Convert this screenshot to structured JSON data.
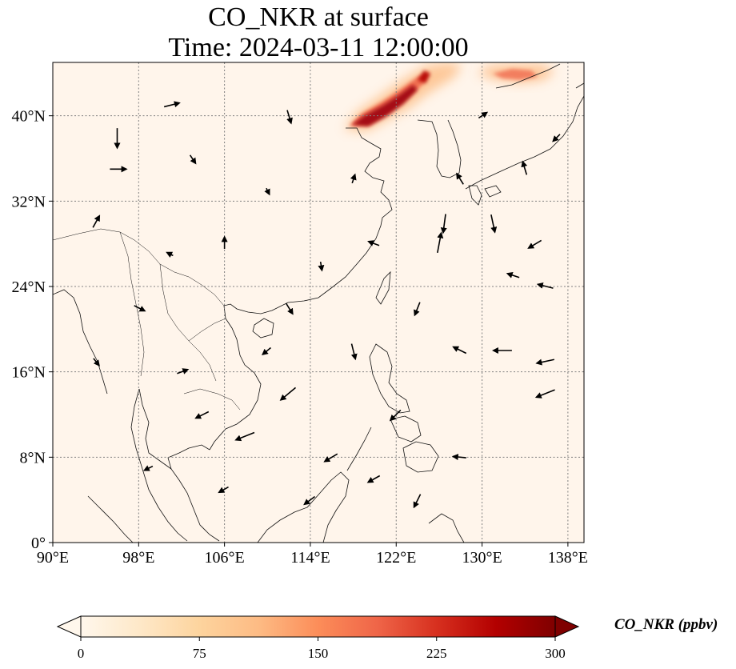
{
  "figure": {
    "title_line1": "CO_NKR at surface",
    "title_line2": "Time: 2024-03-11 12:00:00"
  },
  "map": {
    "extent": {
      "lon_min": 90,
      "lon_max": 139.5,
      "lat_min": 0,
      "lat_max": 45
    },
    "lon_ticks": [
      {
        "value": 90,
        "label": "90°E"
      },
      {
        "value": 98,
        "label": "98°E"
      },
      {
        "value": 106,
        "label": "106°E"
      },
      {
        "value": 114,
        "label": "114°E"
      },
      {
        "value": 122,
        "label": "122°E"
      },
      {
        "value": 130,
        "label": "130°E"
      },
      {
        "value": 138,
        "label": "138°E"
      }
    ],
    "lat_ticks": [
      {
        "value": 0,
        "label": "0°"
      },
      {
        "value": 8,
        "label": "8°N"
      },
      {
        "value": 16,
        "label": "16°N"
      },
      {
        "value": 24,
        "label": "24°N"
      },
      {
        "value": 32,
        "label": "32°N"
      },
      {
        "value": 40,
        "label": "40°N"
      }
    ],
    "gridlines": "dotted",
    "background_color": "#fff5eb",
    "colormap": "OrRd",
    "plumes": [
      {
        "name": "plume-bohai",
        "lon": 121.5,
        "lat": 41.0,
        "intensity": 1.0
      },
      {
        "name": "plume-northeast-china",
        "lon": 125.0,
        "lat": 43.5,
        "intensity": 0.55
      },
      {
        "name": "plume-north-east",
        "lon": 134.0,
        "lat": 44.0,
        "intensity": 0.35
      }
    ]
  },
  "colorbar": {
    "label": "CO_NKR (ppbv)",
    "min": 0,
    "max": 300,
    "ticks": [
      "0",
      "75",
      "150",
      "225",
      "300"
    ],
    "extend": "both",
    "colors": [
      "#fff7ec",
      "#fee8c8",
      "#fdd49e",
      "#fdbb84",
      "#fc8d59",
      "#ef6548",
      "#d7301f",
      "#b30000",
      "#7f0000"
    ]
  },
  "wind": {
    "vectors": [
      {
        "lon": 96,
        "lat": 38,
        "u": 0,
        "v": -1.6
      },
      {
        "lon": 101,
        "lat": 41,
        "u": 1.2,
        "v": 0.3
      },
      {
        "lon": 112,
        "lat": 40,
        "u": 0.3,
        "v": -1.0
      },
      {
        "lon": 96,
        "lat": 35,
        "u": 1.3,
        "v": 0
      },
      {
        "lon": 106,
        "lat": 28,
        "u": 0,
        "v": 0.9
      },
      {
        "lon": 98,
        "lat": 22,
        "u": 0.8,
        "v": -0.4
      },
      {
        "lon": 112,
        "lat": 22,
        "u": 0.5,
        "v": -0.8
      },
      {
        "lon": 118,
        "lat": 18,
        "u": 0.3,
        "v": -1.2
      },
      {
        "lon": 122,
        "lat": 12,
        "u": -0.8,
        "v": -0.8
      },
      {
        "lon": 116,
        "lat": 8,
        "u": -1.0,
        "v": -0.6
      },
      {
        "lon": 108,
        "lat": 10,
        "u": -1.5,
        "v": -0.6
      },
      {
        "lon": 112,
        "lat": 14,
        "u": -1.2,
        "v": -1.0
      },
      {
        "lon": 128,
        "lat": 18,
        "u": -1.0,
        "v": 0.5
      },
      {
        "lon": 132,
        "lat": 18,
        "u": -1.5,
        "v": 0
      },
      {
        "lon": 136,
        "lat": 14,
        "u": -1.5,
        "v": -0.6
      },
      {
        "lon": 136,
        "lat": 17,
        "u": -1.4,
        "v": -0.3
      },
      {
        "lon": 126,
        "lat": 28,
        "u": 0.3,
        "v": 1.6
      },
      {
        "lon": 126.5,
        "lat": 30,
        "u": -0.2,
        "v": -1.5
      },
      {
        "lon": 131,
        "lat": 30,
        "u": 0.3,
        "v": -1.4
      },
      {
        "lon": 135,
        "lat": 28,
        "u": -1.0,
        "v": -0.6
      },
      {
        "lon": 133,
        "lat": 25,
        "u": -0.9,
        "v": 0.3
      },
      {
        "lon": 136,
        "lat": 24,
        "u": -1.2,
        "v": 0.3
      },
      {
        "lon": 128,
        "lat": 34,
        "u": -0.5,
        "v": 0.8
      },
      {
        "lon": 134,
        "lat": 35,
        "u": -0.3,
        "v": 1.0
      },
      {
        "lon": 118,
        "lat": 34,
        "u": 0.2,
        "v": 0.6
      },
      {
        "lon": 120,
        "lat": 28,
        "u": -0.8,
        "v": 0.3
      },
      {
        "lon": 102,
        "lat": 16,
        "u": 0.8,
        "v": 0.3
      },
      {
        "lon": 104,
        "lat": 12,
        "u": -1.0,
        "v": -0.5
      },
      {
        "lon": 99,
        "lat": 7,
        "u": -0.6,
        "v": -0.3
      },
      {
        "lon": 124,
        "lat": 4,
        "u": -0.5,
        "v": -1.0
      },
      {
        "lon": 128,
        "lat": 8,
        "u": -1.0,
        "v": 0.1
      },
      {
        "lon": 94,
        "lat": 30,
        "u": 0.5,
        "v": 0.9
      },
      {
        "lon": 103,
        "lat": 36,
        "u": 0.4,
        "v": -0.6
      },
      {
        "lon": 110,
        "lat": 33,
        "u": 0.2,
        "v": -0.4
      },
      {
        "lon": 115,
        "lat": 26,
        "u": 0.1,
        "v": -0.6
      },
      {
        "lon": 137,
        "lat": 38,
        "u": -0.5,
        "v": -0.5
      },
      {
        "lon": 130,
        "lat": 40,
        "u": 0.6,
        "v": 0.4
      },
      {
        "lon": 106,
        "lat": 5,
        "u": -0.7,
        "v": -0.4
      },
      {
        "lon": 114,
        "lat": 4,
        "u": -0.8,
        "v": -0.6
      },
      {
        "lon": 120,
        "lat": 6,
        "u": -0.9,
        "v": -0.5
      },
      {
        "lon": 94,
        "lat": 17,
        "u": 0.4,
        "v": -0.5
      },
      {
        "lon": 101,
        "lat": 27,
        "u": -0.4,
        "v": 0.2
      },
      {
        "lon": 124,
        "lat": 22,
        "u": -0.4,
        "v": -1.0
      },
      {
        "lon": 110,
        "lat": 18,
        "u": -0.6,
        "v": -0.5
      }
    ]
  }
}
